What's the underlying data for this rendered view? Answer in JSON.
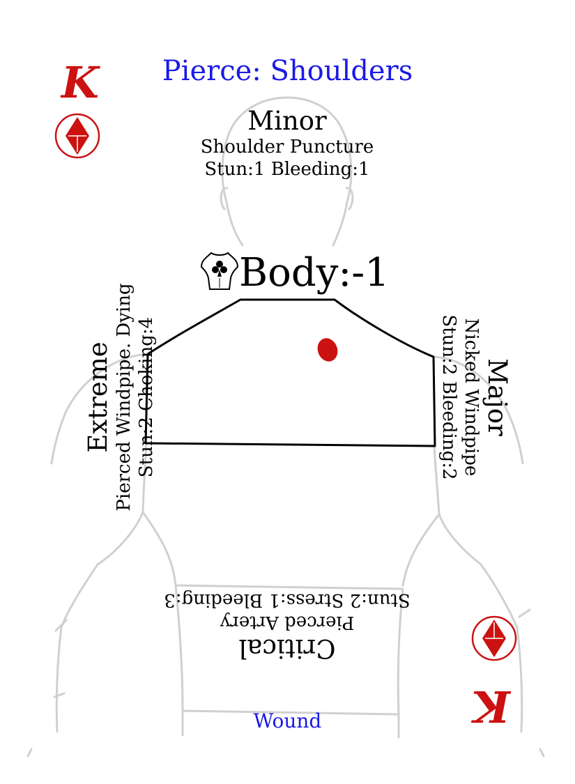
{
  "card": {
    "title": "Pierce: Shoulders",
    "rank": "K",
    "suit_icon": "diamond-icon",
    "body_icon": "torso-club-icon",
    "body_modifier": "Body:-1",
    "footer": "Wound",
    "colors": {
      "title": "#1a1ae6",
      "rank": "#cc1111",
      "wound_marker": "#cc1111",
      "silhouette": "#d0d0d0",
      "outline": "#000000"
    },
    "minor": {
      "heading": "Minor",
      "name": "Shoulder Puncture",
      "effects": "Stun:1 Bleeding:1"
    },
    "major": {
      "heading": "Major",
      "name": "Nicked Windpipe",
      "effects": "Stun:2 Bleeding:2"
    },
    "critical": {
      "heading": "Critical",
      "name": "Pierced Artery",
      "effects": "Stun:2 Stress:1 Bleeding:3"
    },
    "extreme": {
      "heading": "Extreme",
      "name": "Pierced Windpipe. Dying",
      "effects": "Stun:2 Choking:4"
    }
  }
}
